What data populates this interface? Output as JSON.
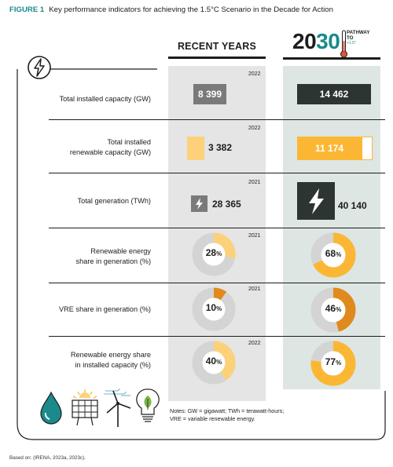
{
  "figure": {
    "label": "FIGURE 1",
    "title": "Key performance indicators for achieving the 1.5°C Scenario in the Decade for Action"
  },
  "columns": {
    "recent_header": "RECENT YEARS",
    "target_year_prefix": "20",
    "target_year_suffix": "30",
    "pathway_line1": "PATHWAY",
    "pathway_line2": "TO",
    "pathway_line3": "+1.5°"
  },
  "rows": [
    {
      "label": "Total installed capacity (GW)",
      "year": "2022",
      "recent": "8 399",
      "target": "14 462",
      "recent_bar_fraction": 0.58
    },
    {
      "label_line1": "Total installed",
      "label_line2": "renewable capacity (GW)",
      "year": "2022",
      "recent": "3 382",
      "target": "11 174",
      "recent_bar_fraction": 0.3
    },
    {
      "label": "Total generation (TWh)",
      "year": "2021",
      "recent": "28 365",
      "target": "40 140"
    },
    {
      "label_line1": "Renewable energy",
      "label_line2": "share in generation (%)",
      "year": "2021",
      "recent_value": "28",
      "target_value": "68",
      "recent": 28,
      "target": 68
    },
    {
      "label": "VRE share in generation (%)",
      "year": "2021",
      "recent_value": "10",
      "target_value": "46",
      "recent": 10,
      "target": 46
    },
    {
      "label_line1": "Renewable energy share",
      "label_line2": "in installed capacity (%)",
      "year": "2022",
      "recent_value": "40",
      "target_value": "77",
      "recent": 40,
      "target": 77
    }
  ],
  "percent_sign": "%",
  "notes": {
    "line1": "Notes: GW = gigawatt; TWh = terawatt-hours;",
    "line2": "VRE = variable renewable energy."
  },
  "based_on": "Based on: (IRENA, 2023a, 2023c).",
  "icons": [
    "lightning-icon",
    "water-drop-icon",
    "solar-panel-icon",
    "wind-turbine-icon",
    "lightbulb-leaf-icon"
  ],
  "colors": {
    "accent": "#1a8a8a",
    "dark_box": "#2c3532",
    "grey_box": "#7a7a7a",
    "renewable": "#fcd17a",
    "renewable_strong": "#fbb734",
    "vre": "#e08a1e",
    "recent_bg": "#e5e5e5",
    "target_bg": "#dde6e3"
  }
}
